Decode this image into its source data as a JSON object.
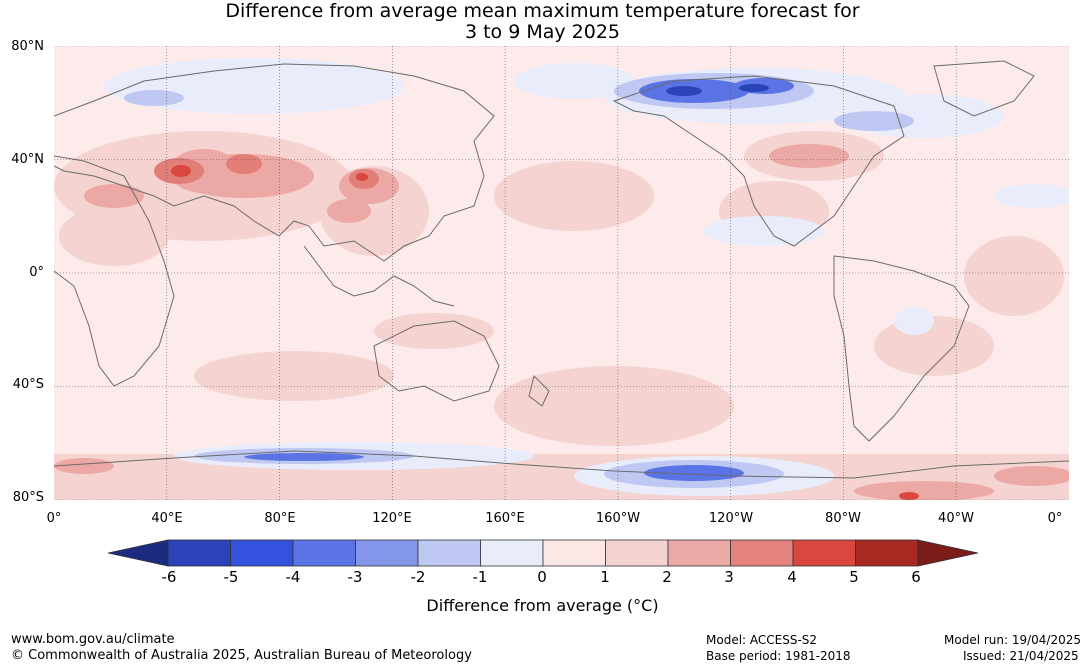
{
  "title": {
    "line1": "Difference from average mean maximum temperature forecast for",
    "line2": "3 to 9 May 2025"
  },
  "axes": {
    "lat_labels": [
      "80°N",
      "40°N",
      "0°",
      "40°S",
      "80°S"
    ],
    "lon_labels": [
      "0°",
      "40°E",
      "80°E",
      "120°E",
      "160°E",
      "160°W",
      "120°W",
      "80°W",
      "40°W",
      "0°"
    ]
  },
  "colorbar": {
    "ticks": [
      "-6",
      "-5",
      "-4",
      "-3",
      "-2",
      "-1",
      "0",
      "1",
      "2",
      "3",
      "4",
      "5",
      "6"
    ],
    "label": "Difference from average (°C)",
    "colors": [
      "#1c2a80",
      "#2a43b8",
      "#3352e0",
      "#5a74e6",
      "#8396ea",
      "#bfc8f3",
      "#e9ecfb",
      "#fbe7e6",
      "#f4d2d0",
      "#eda9a5",
      "#e5847e",
      "#d9473e",
      "#a92922",
      "#7a1d1a"
    ]
  },
  "footer": {
    "website": "www.bom.gov.au/climate",
    "copyright": "© Commonwealth of Australia 2025, Australian Bureau of Meteorology",
    "model": "Model: ACCESS-S2",
    "base_period": "Base period: 1981-2018",
    "model_run": "Model run: 19/04/2025",
    "issued": "Issued: 21/04/2025"
  }
}
